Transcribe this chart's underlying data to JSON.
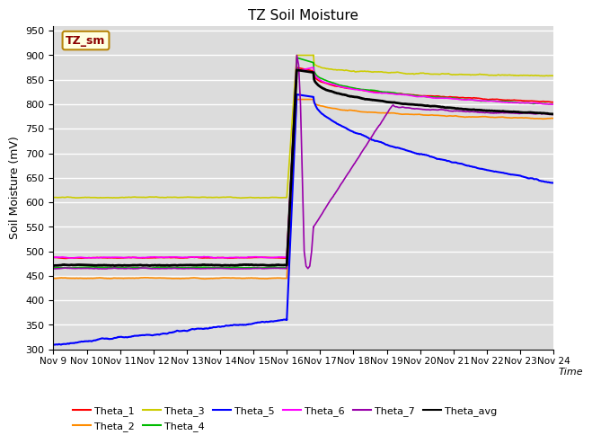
{
  "title": "TZ Soil Moisture",
  "ylabel": "Soil Moisture (mV)",
  "xlabel": "Time",
  "ylim": [
    300,
    960
  ],
  "yticks": [
    300,
    350,
    400,
    450,
    500,
    550,
    600,
    650,
    700,
    750,
    800,
    850,
    900,
    950
  ],
  "xtick_labels": [
    "Nov 9",
    "Nov 10",
    "Nov 11",
    "Nov 12",
    "Nov 13",
    "Nov 14",
    "Nov 15",
    "Nov 16",
    "Nov 17",
    "Nov 18",
    "Nov 19",
    "Nov 20",
    "Nov 21",
    "Nov 22",
    "Nov 23",
    "Nov 24"
  ],
  "legend_label": "TZ_sm",
  "legend_label_color": "#8B0000",
  "legend_box_color": "#FFFFE0",
  "legend_box_edge": "#B8860B",
  "background_color": "#DCDCDC",
  "series_order": [
    "Theta_1",
    "Theta_2",
    "Theta_3",
    "Theta_4",
    "Theta_5",
    "Theta_6",
    "Theta_7",
    "Theta_avg"
  ],
  "series": {
    "Theta_1": {
      "color": "#FF0000",
      "lw": 1.2
    },
    "Theta_2": {
      "color": "#FF8C00",
      "lw": 1.2
    },
    "Theta_3": {
      "color": "#CCCC00",
      "lw": 1.2
    },
    "Theta_4": {
      "color": "#00BB00",
      "lw": 1.2
    },
    "Theta_5": {
      "color": "#0000FF",
      "lw": 1.5
    },
    "Theta_6": {
      "color": "#FF00FF",
      "lw": 1.2
    },
    "Theta_7": {
      "color": "#9900AA",
      "lw": 1.2
    },
    "Theta_avg": {
      "color": "#000000",
      "lw": 2.0
    }
  },
  "legend_row1": [
    "Theta_1",
    "Theta_2",
    "Theta_3",
    "Theta_4",
    "Theta_5",
    "Theta_6"
  ],
  "legend_row2": [
    "Theta_7",
    "Theta_avg"
  ]
}
